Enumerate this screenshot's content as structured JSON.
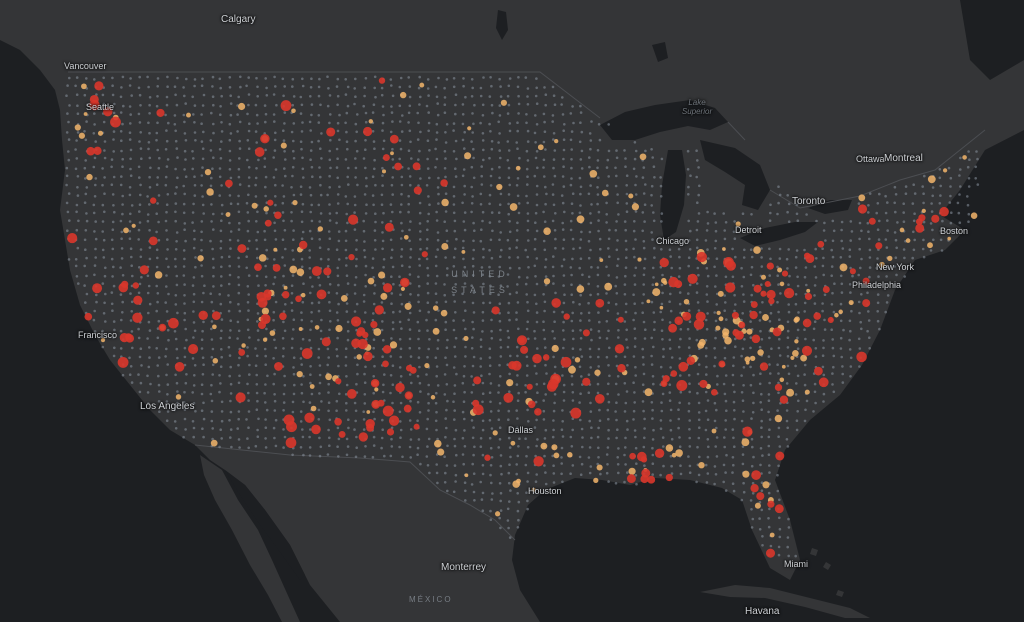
{
  "map": {
    "style": "dark",
    "colors": {
      "ocean": "#1d1f22",
      "land": "#343537",
      "lake": "#1d1f22",
      "border": "#4a4c50",
      "dot_low": "#8a94a0",
      "dot_mid": "#f3b56b",
      "dot_high": "#d9362b"
    },
    "legend": null
  },
  "labels": {
    "calgary": "Calgary",
    "vancouver": "Vancouver",
    "seattle": "Seattle",
    "ottawa": "Ottawa",
    "montreal": "Montreal",
    "toronto": "Toronto",
    "detroit": "Detroit",
    "chicago": "Chicago",
    "new_york": "New York",
    "philadelphia": "Philadelphia",
    "boston": "Boston",
    "san_francisco": "Francisco",
    "los_angeles": "Los Angeles",
    "dallas": "Dallas",
    "houston": "Houston",
    "miami": "Miami",
    "monterrey": "Monterrey",
    "havana": "Havana",
    "mexico": "MÉXICO",
    "lake_superior": "Lake Superior",
    "united_states": "UNITED STATES"
  }
}
